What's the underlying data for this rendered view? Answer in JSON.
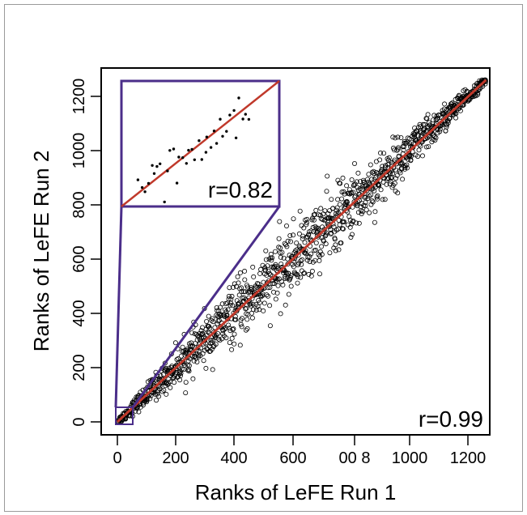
{
  "chart_data": {
    "type": "scatter",
    "xlabel": "Ranks of LeFE Run 1",
    "ylabel": "Ranks of LeFE Run 2",
    "x_tick_labels": [
      "0",
      "200",
      "400",
      "600",
      "00 8",
      "1000",
      "1200"
    ],
    "y_tick_labels": [
      "0",
      "200",
      "400",
      "600",
      "800",
      "1000",
      "1200"
    ],
    "xlim": [
      0,
      1260
    ],
    "ylim": [
      0,
      1260
    ],
    "annotation": "r=0.99",
    "fit_line": {
      "from": [
        0,
        0
      ],
      "to": [
        1260,
        1260
      ],
      "color": "#c0392b"
    },
    "series": [
      {
        "n_points": 1260,
        "marker": "open-circle",
        "correlation": 0.99
      }
    ],
    "inset": {
      "zoom_region": {
        "x": [
          0,
          50
        ],
        "y": [
          0,
          50
        ]
      },
      "annotation": "r=0.82",
      "n_points": 50,
      "marker": "filled-dot",
      "box_color": "#4b2e8a"
    },
    "colors": {
      "fit": "#c0392b",
      "inset_box": "#4b2e8a",
      "points": "#000000"
    }
  }
}
